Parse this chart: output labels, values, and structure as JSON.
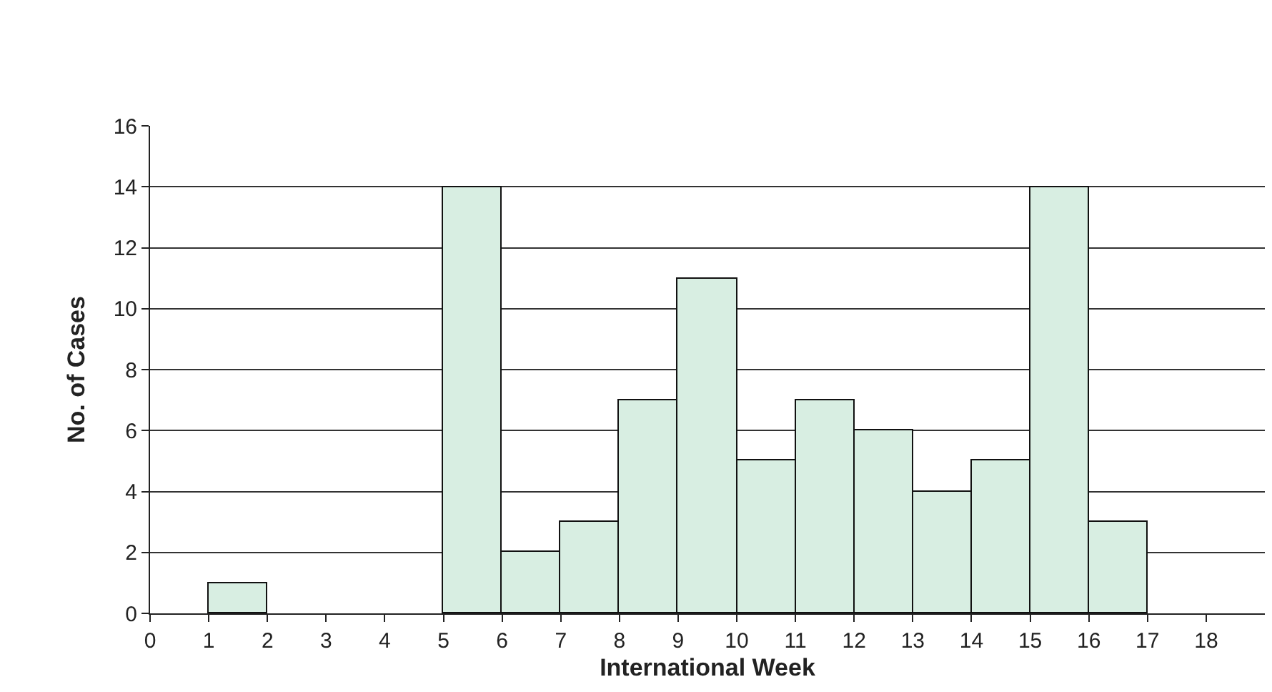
{
  "chart_data": {
    "type": "histogram",
    "xlabel": "International Week",
    "ylabel": "No. of Cases",
    "bins": [
      0,
      1,
      2,
      3,
      4,
      5,
      6,
      7,
      8,
      9,
      10,
      11,
      12,
      13,
      14,
      15,
      16,
      17,
      18
    ],
    "values": [
      0,
      1,
      0,
      0,
      0,
      14,
      2,
      3,
      7,
      11,
      5,
      7,
      6,
      4,
      5,
      14,
      3,
      0
    ],
    "color": "#d8eee2",
    "xlim": [
      0,
      19
    ],
    "xticks": [
      0,
      1,
      2,
      3,
      4,
      5,
      6,
      7,
      8,
      9,
      10,
      11,
      12,
      13,
      14,
      15,
      16,
      17,
      18
    ],
    "ylim": [
      0,
      16
    ],
    "yticks": [
      0,
      2,
      4,
      6,
      8,
      10,
      12,
      14,
      16
    ],
    "grid": "y"
  }
}
